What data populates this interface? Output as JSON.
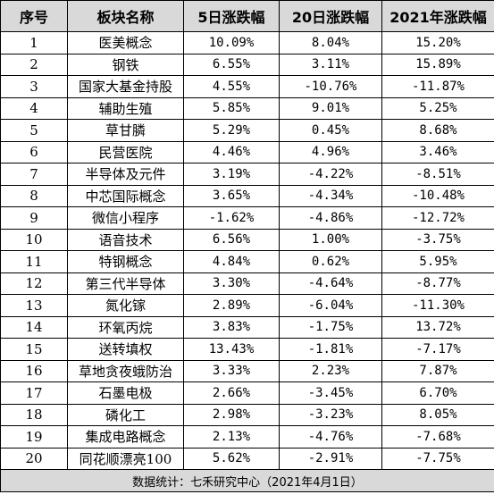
{
  "headers": [
    "序号",
    "板块名称",
    "5日涨跌幅",
    "20日涨跌幅",
    "2021年涨跌幅"
  ],
  "rows": [
    {
      "index": "1",
      "name": "医美概念",
      "d5": "10.09%",
      "d20": "8.04%",
      "ytd": "15.20%"
    },
    {
      "index": "2",
      "name": "钢铁",
      "d5": "6.55%",
      "d20": "3.11%",
      "ytd": "15.89%"
    },
    {
      "index": "3",
      "name": "国家大基金持股",
      "d5": "4.55%",
      "d20": "-10.76%",
      "ytd": "-11.87%"
    },
    {
      "index": "4",
      "name": "辅助生殖",
      "d5": "5.85%",
      "d20": "9.01%",
      "ytd": "5.25%"
    },
    {
      "index": "5",
      "name": "草甘膦",
      "d5": "5.29%",
      "d20": "0.45%",
      "ytd": "8.68%"
    },
    {
      "index": "6",
      "name": "民营医院",
      "d5": "4.46%",
      "d20": "4.96%",
      "ytd": "3.46%"
    },
    {
      "index": "7",
      "name": "半导体及元件",
      "d5": "3.19%",
      "d20": "-4.22%",
      "ytd": "-8.51%"
    },
    {
      "index": "8",
      "name": "中芯国际概念",
      "d5": "3.65%",
      "d20": "-4.34%",
      "ytd": "-10.48%"
    },
    {
      "index": "9",
      "name": "微信小程序",
      "d5": "-1.62%",
      "d20": "-4.86%",
      "ytd": "-12.72%"
    },
    {
      "index": "10",
      "name": "语音技术",
      "d5": "6.56%",
      "d20": "1.00%",
      "ytd": "-3.75%"
    },
    {
      "index": "11",
      "name": "特钢概念",
      "d5": "4.84%",
      "d20": "0.62%",
      "ytd": "5.95%"
    },
    {
      "index": "12",
      "name": "第三代半导体",
      "d5": "3.30%",
      "d20": "-4.64%",
      "ytd": "-8.77%"
    },
    {
      "index": "13",
      "name": "氮化镓",
      "d5": "2.89%",
      "d20": "-6.04%",
      "ytd": "-11.30%"
    },
    {
      "index": "14",
      "name": "环氧丙烷",
      "d5": "3.83%",
      "d20": "-1.75%",
      "ytd": "13.72%"
    },
    {
      "index": "15",
      "name": "送转填权",
      "d5": "13.43%",
      "d20": "-1.81%",
      "ytd": "-7.17%"
    },
    {
      "index": "16",
      "name": "草地贪夜蛾防治",
      "d5": "3.33%",
      "d20": "2.23%",
      "ytd": "7.87%"
    },
    {
      "index": "17",
      "name": "石墨电极",
      "d5": "2.66%",
      "d20": "-3.45%",
      "ytd": "6.70%"
    },
    {
      "index": "18",
      "name": "磷化工",
      "d5": "2.98%",
      "d20": "-3.23%",
      "ytd": "8.05%"
    },
    {
      "index": "19",
      "name": "集成电路概念",
      "d5": "2.13%",
      "d20": "-4.76%",
      "ytd": "-7.68%"
    },
    {
      "index": "20",
      "name": "同花顺漂亮100",
      "d5": "5.62%",
      "d20": "-2.91%",
      "ytd": "-7.75%"
    }
  ],
  "footer": "数据统计：七禾研究中心（2021年4月1日）"
}
